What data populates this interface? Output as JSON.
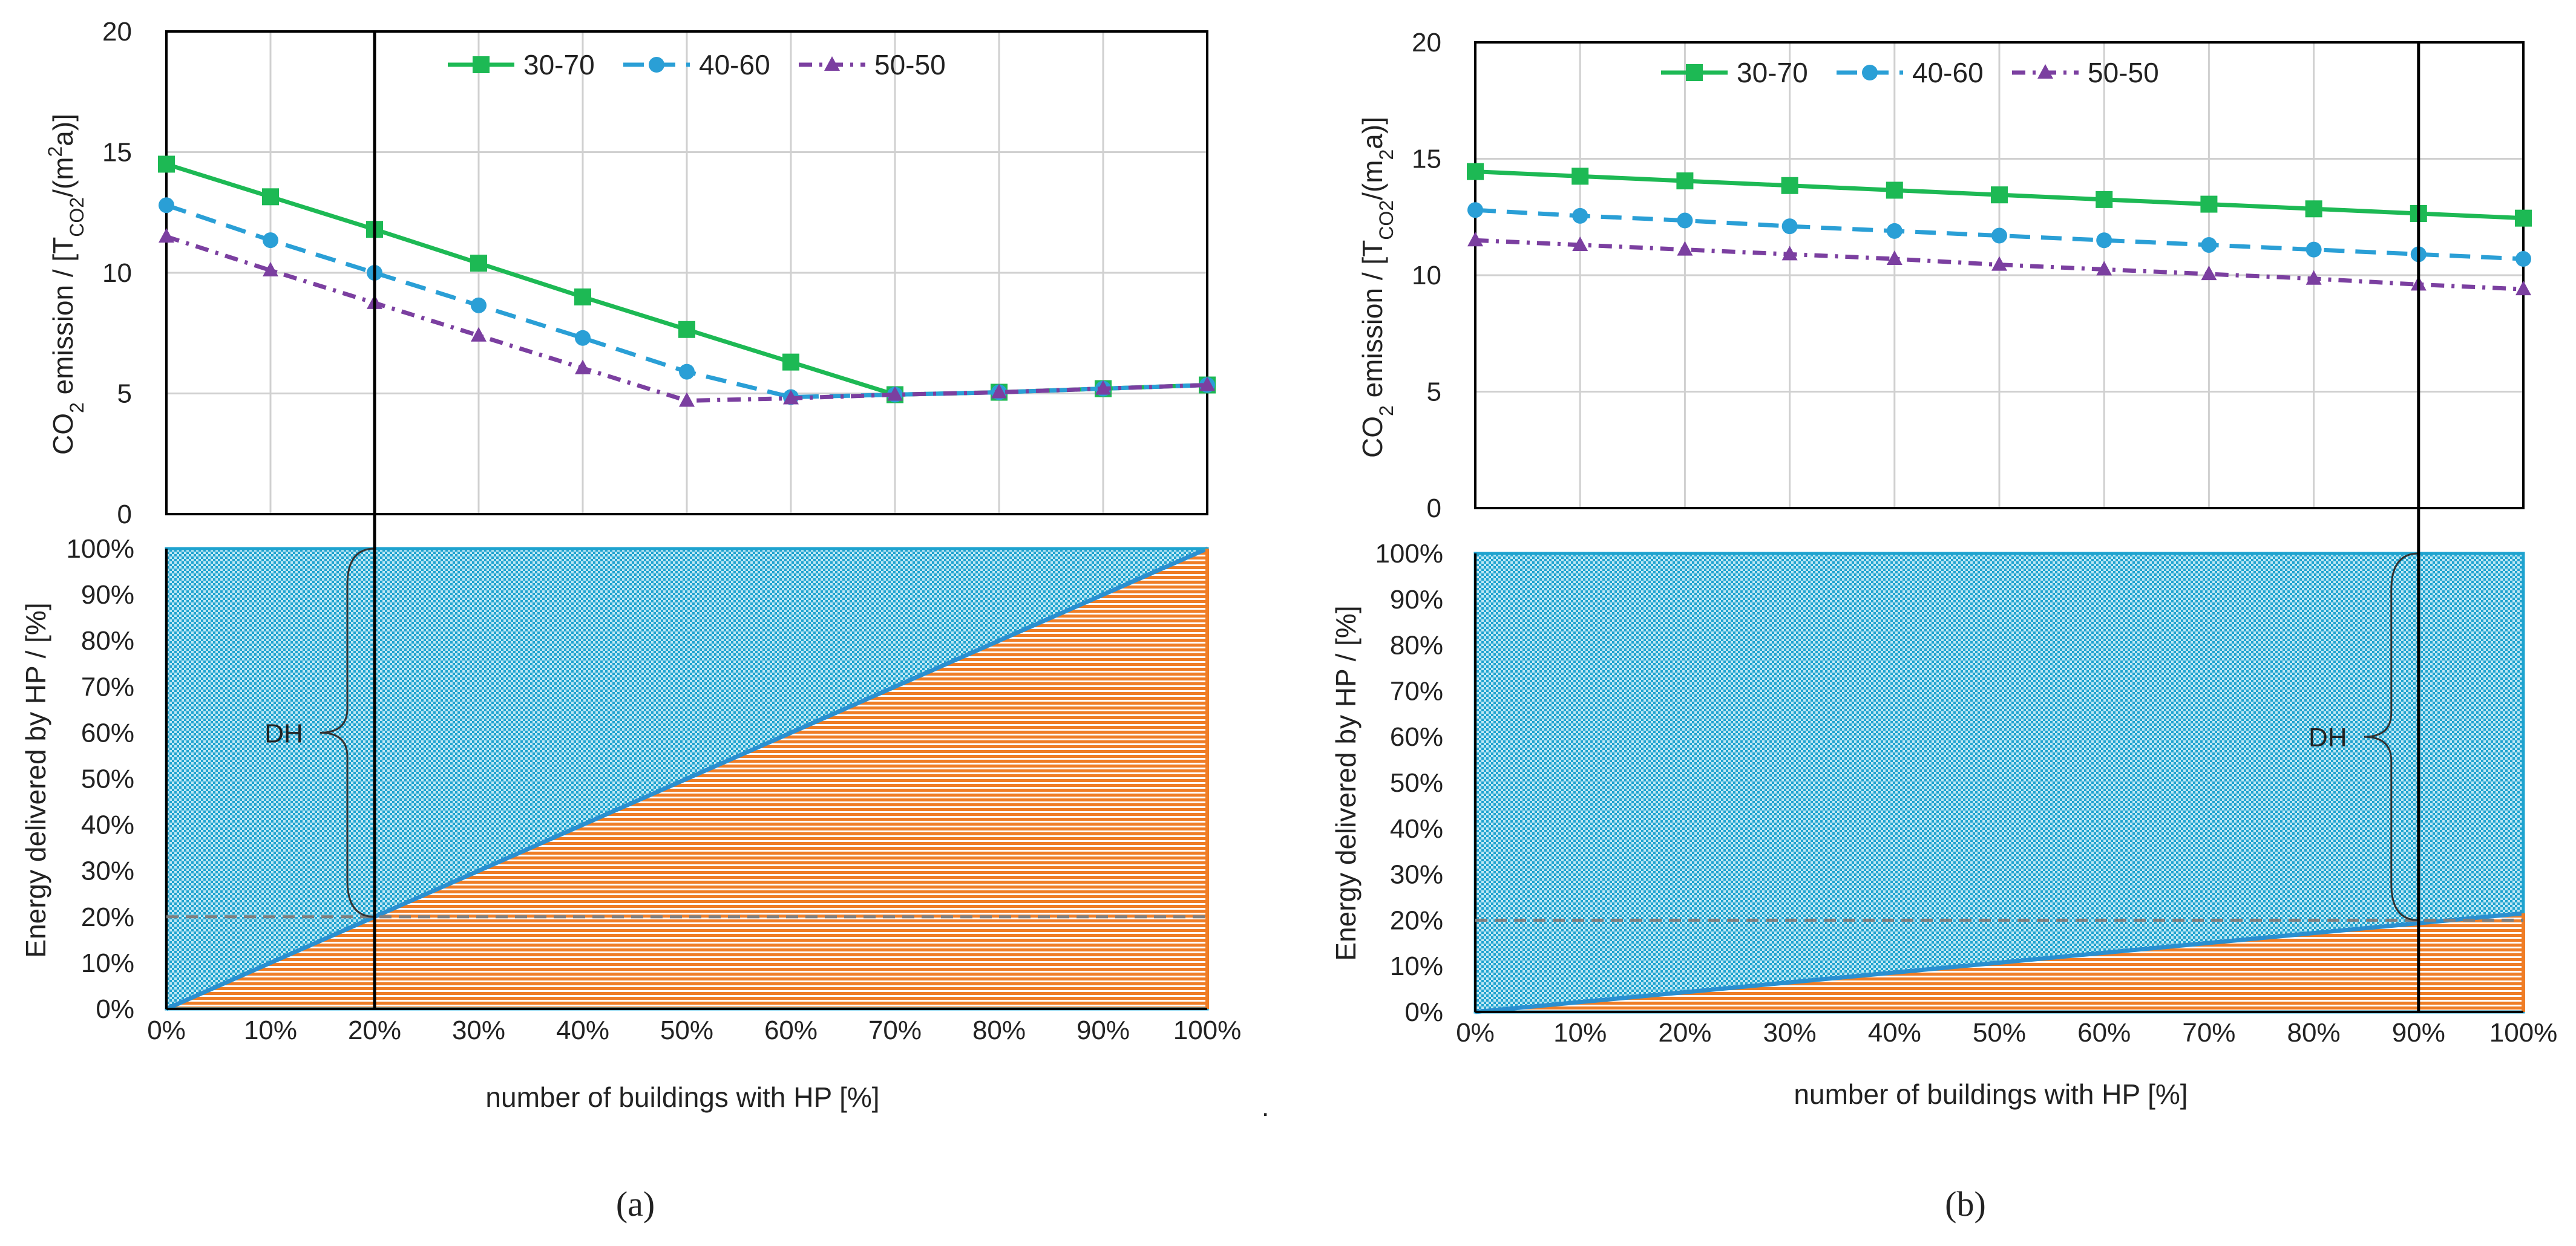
{
  "colors": {
    "series": [
      "#1db954",
      "#2a9fd6",
      "#7b3fa0"
    ],
    "hp_fill": "#ef7d26",
    "dh_fill": "#1fa3cf",
    "hp_line": "#2a8fd0",
    "reference_line": "#7f7f7f",
    "frame": "#000000",
    "grid": "#d0d0d0"
  },
  "chart_data": [
    {
      "panel": "a",
      "type": "line",
      "title": "",
      "panel_label": "(a)",
      "xlabel": "",
      "ylabel": "CO₂ emission / [T_CO2 /(m² a)]",
      "ylabel_parts": {
        "a": "CO",
        "b": "2",
        "c": " emission / [T",
        "d": "CO2",
        "e": "/(m",
        "f": "2",
        "g": "a)]"
      },
      "x": [
        0,
        10,
        20,
        30,
        40,
        50,
        60,
        70,
        80,
        90,
        100
      ],
      "ylim": [
        0,
        20
      ],
      "yticks": [
        "0",
        "5",
        "10",
        "15",
        "20"
      ],
      "legend_position": "top",
      "series": [
        {
          "name": "30-70",
          "marker": "square",
          "dash": "solid",
          "values": [
            14.5,
            13.15,
            11.8,
            10.4,
            9.0,
            7.65,
            6.3,
            4.95,
            5.05,
            5.2,
            5.35
          ]
        },
        {
          "name": "40-60",
          "marker": "circle",
          "dash": "dashed",
          "values": [
            12.8,
            11.35,
            10.0,
            8.65,
            7.3,
            5.9,
            4.85,
            4.95,
            5.05,
            5.2,
            5.35
          ]
        },
        {
          "name": "50-50",
          "marker": "triangle",
          "dash": "dashdot",
          "values": [
            11.5,
            10.1,
            8.75,
            7.4,
            6.05,
            4.7,
            4.8,
            4.95,
            5.05,
            5.2,
            5.35
          ]
        }
      ],
      "marker_line": {
        "x": 20
      }
    },
    {
      "panel": "a",
      "type": "area",
      "xlabel": "number of buildings with HP [%]",
      "ylabel": "Energy delivered by HP / [%]",
      "x": [
        0,
        100
      ],
      "xticks": [
        "0%",
        "10%",
        "20%",
        "30%",
        "40%",
        "50%",
        "60%",
        "70%",
        "80%",
        "90%",
        "100%"
      ],
      "ylim": [
        0,
        100
      ],
      "yticks": [
        "0%",
        "10%",
        "20%",
        "30%",
        "40%",
        "50%",
        "60%",
        "70%",
        "80%",
        "90%",
        "100%"
      ],
      "series": [
        {
          "name": "HP",
          "values": [
            0,
            100
          ]
        },
        {
          "name": "DH",
          "values": [
            100,
            0
          ]
        }
      ],
      "reference_y": 20,
      "marker_line": {
        "x": 20
      },
      "annotation": {
        "text": "DH",
        "brace_x": 20,
        "brace_from": 20,
        "brace_to": 100
      }
    },
    {
      "panel": "b",
      "type": "line",
      "title": "",
      "panel_label": "(b)",
      "xlabel": "",
      "ylabel": "CO₂ emission / [T_CO2 /(m₂ a)]",
      "ylabel_parts": {
        "a": "CO",
        "b": "2",
        "c": " emission / [T",
        "d": "CO2",
        "e": "/(m",
        "f": "2",
        "g": "a)]"
      },
      "x": [
        0,
        10,
        20,
        30,
        40,
        50,
        60,
        70,
        80,
        90,
        100
      ],
      "ylim": [
        0,
        20
      ],
      "yticks": [
        "0",
        "5",
        "10",
        "15",
        "20"
      ],
      "legend_position": "top",
      "series": [
        {
          "name": "30-70",
          "marker": "square",
          "dash": "solid",
          "values": [
            14.45,
            14.25,
            14.05,
            13.85,
            13.65,
            13.45,
            13.25,
            13.05,
            12.85,
            12.65,
            12.45
          ]
        },
        {
          "name": "40-60",
          "marker": "circle",
          "dash": "dashed",
          "values": [
            12.8,
            12.55,
            12.35,
            12.1,
            11.9,
            11.7,
            11.5,
            11.3,
            11.1,
            10.9,
            10.7
          ]
        },
        {
          "name": "50-50",
          "marker": "triangle",
          "dash": "dashdot",
          "values": [
            11.5,
            11.3,
            11.1,
            10.9,
            10.7,
            10.45,
            10.25,
            10.05,
            9.85,
            9.6,
            9.4
          ]
        }
      ],
      "marker_line": {
        "x": 90
      }
    },
    {
      "panel": "b",
      "type": "area",
      "xlabel": "number of buildings with HP [%]",
      "ylabel": "Energy delivered by HP / [%]",
      "x": [
        0,
        100
      ],
      "xticks": [
        "0%",
        "10%",
        "20%",
        "30%",
        "40%",
        "50%",
        "60%",
        "70%",
        "80%",
        "90%",
        "100%"
      ],
      "ylim": [
        0,
        100
      ],
      "yticks": [
        "0%",
        "10%",
        "20%",
        "30%",
        "40%",
        "50%",
        "60%",
        "70%",
        "80%",
        "90%",
        "100%"
      ],
      "series": [
        {
          "name": "HP",
          "values": [
            0,
            21.5
          ]
        },
        {
          "name": "DH",
          "values": [
            100,
            78.5
          ]
        }
      ],
      "reference_y": 20,
      "marker_line": {
        "x": 90
      },
      "annotation": {
        "text": "DH",
        "brace_x": 90,
        "brace_from": 20,
        "brace_to": 100
      }
    }
  ],
  "stray_mark": "."
}
